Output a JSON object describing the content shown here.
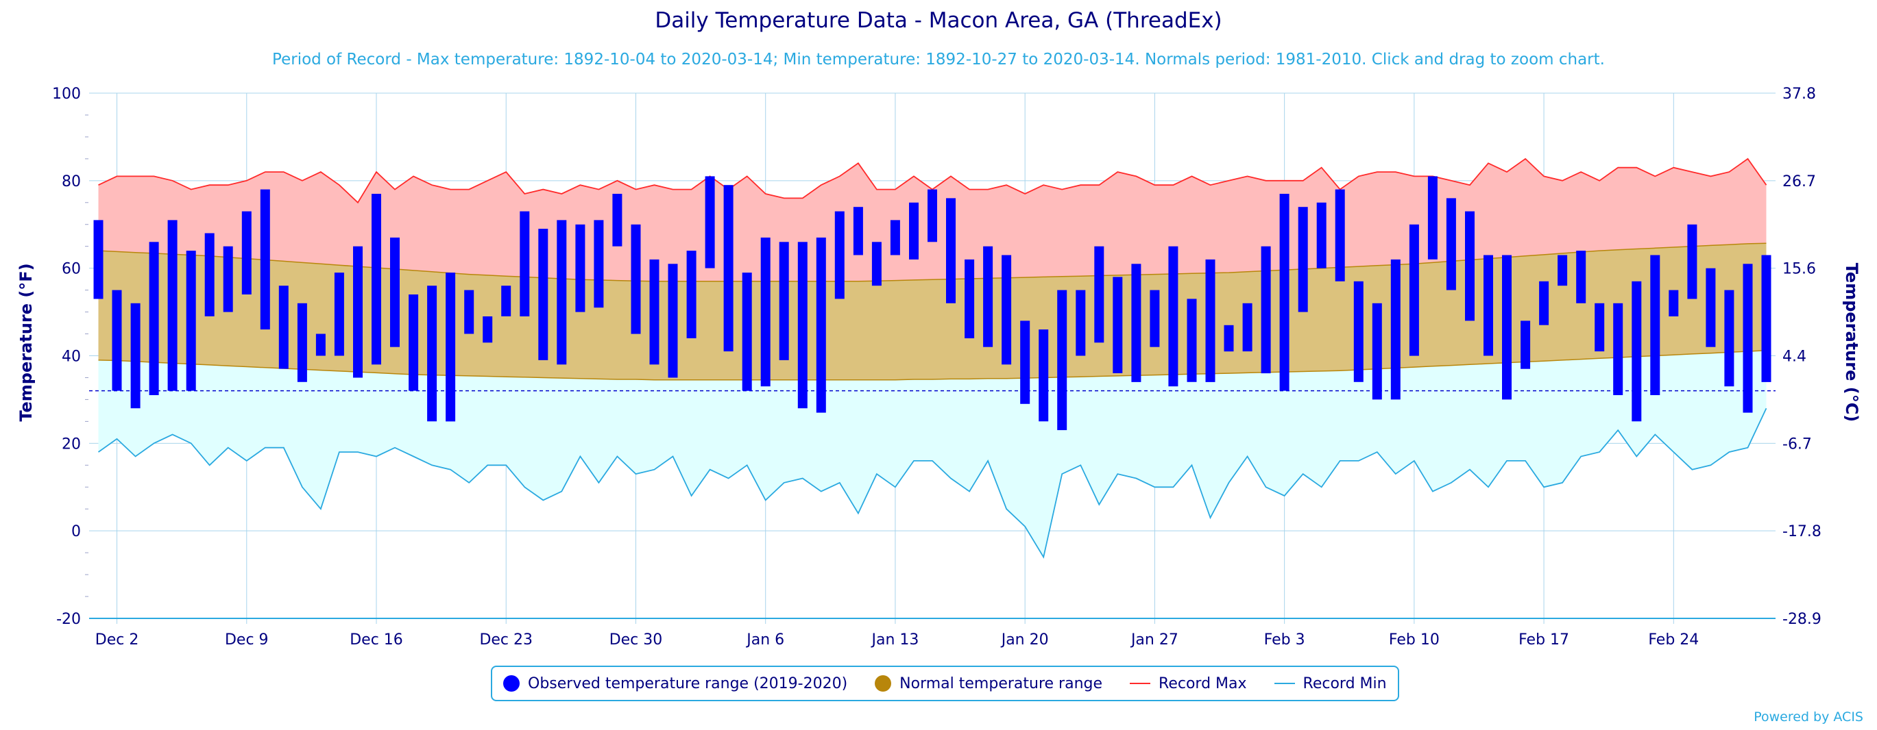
{
  "title": "Daily Temperature Data - Macon Area, GA (ThreadEx)",
  "subtitle": "Period of Record - Max temperature: 1892-10-04 to 2020-03-14; Min temperature: 1892-10-27 to 2020-03-14. Normals period: 1981-2010. Click and drag to zoom chart.",
  "credit": "Powered by ACIS",
  "legend": {
    "observed": "Observed temperature range (2019-2020)",
    "normal": "Normal temperature range",
    "record_max": "Record Max",
    "record_min": "Record Min"
  },
  "colors": {
    "observed": "#0000ff",
    "normal_fill": "#dcc27d",
    "normal_dot": "#b8860b",
    "record_max_fill": "#ffbcbc",
    "record_max_line": "#ff2a2a",
    "record_min_fill": "#e0ffff",
    "record_min_line": "#2aa9e0",
    "axis_text": "#000080",
    "freezing_line": "#0000cc"
  },
  "chart_data": {
    "type": "bar",
    "title": "Daily Temperature Data - Macon Area, GA (ThreadEx)",
    "xlabel": "",
    "ylabel": "Temperature (°F)",
    "ylabel_right": "Temperature (°C)",
    "ylim": [
      -20,
      100
    ],
    "start_date": "2019-12-01",
    "end_date": "2020-02-29",
    "x_tick_labels": [
      "Dec 2",
      "Dec 9",
      "Dec 16",
      "Dec 23",
      "Dec 30",
      "Jan 6",
      "Jan 13",
      "Jan 20",
      "Jan 27",
      "Feb 3",
      "Feb 10",
      "Feb 17",
      "Feb 24"
    ],
    "y_ticks_f": [
      -20,
      0,
      20,
      40,
      60,
      80,
      100
    ],
    "y_ticks_c": [
      "-28.9",
      "-17.8",
      "-6.7",
      "4.4",
      "15.6",
      "26.7",
      "37.8"
    ],
    "freezing_f": 32,
    "grid": true,
    "legend_position": "bottom",
    "observed_high": [
      71,
      55,
      52,
      66,
      71,
      64,
      68,
      65,
      73,
      78,
      56,
      52,
      45,
      59,
      65,
      77,
      67,
      54,
      56,
      59,
      55,
      49,
      56,
      73,
      69,
      71,
      70,
      71,
      77,
      70,
      62,
      61,
      64,
      81,
      79,
      59,
      67,
      66,
      66,
      67,
      73,
      74,
      66,
      71,
      75,
      78,
      76,
      62,
      65,
      63,
      48,
      46,
      55,
      55,
      65,
      58,
      61,
      55,
      65,
      53,
      62,
      47,
      52,
      65,
      77,
      74,
      75,
      78,
      57,
      52,
      62,
      70,
      81,
      76,
      73,
      63,
      63,
      48,
      57,
      63,
      64,
      52,
      52,
      57,
      63,
      55,
      70,
      60,
      55,
      61,
      63
    ],
    "observed_low": [
      53,
      32,
      28,
      31,
      32,
      32,
      49,
      50,
      54,
      46,
      37,
      34,
      40,
      40,
      35,
      38,
      42,
      32,
      25,
      25,
      45,
      43,
      49,
      49,
      39,
      38,
      50,
      51,
      65,
      45,
      38,
      35,
      44,
      60,
      41,
      32,
      33,
      39,
      28,
      27,
      53,
      63,
      56,
      63,
      62,
      66,
      52,
      44,
      42,
      38,
      29,
      25,
      23,
      40,
      43,
      36,
      34,
      42,
      33,
      34,
      34,
      41,
      41,
      36,
      32,
      50,
      60,
      57,
      34,
      30,
      30,
      40,
      62,
      55,
      48,
      40,
      30,
      37,
      47,
      56,
      52,
      41,
      31,
      25,
      31,
      49,
      53,
      42,
      33,
      27,
      34
    ],
    "normal_high": [
      64,
      63.8,
      63.6,
      63.4,
      63.2,
      63,
      62.8,
      62.5,
      62.2,
      61.9,
      61.6,
      61.3,
      61,
      60.7,
      60.4,
      60.1,
      59.8,
      59.5,
      59.2,
      58.9,
      58.6,
      58.4,
      58.2,
      58,
      57.8,
      57.6,
      57.4,
      57.3,
      57.2,
      57.1,
      57,
      57,
      57,
      57,
      57,
      57,
      57,
      57,
      57,
      57,
      57,
      57,
      57.1,
      57.2,
      57.3,
      57.4,
      57.5,
      57.6,
      57.7,
      57.8,
      57.9,
      58,
      58.1,
      58.2,
      58.3,
      58.4,
      58.5,
      58.6,
      58.7,
      58.8,
      58.9,
      59,
      59.2,
      59.4,
      59.6,
      59.8,
      60,
      60.2,
      60.4,
      60.6,
      60.8,
      61,
      61.3,
      61.6,
      61.9,
      62.2,
      62.5,
      62.8,
      63.1,
      63.4,
      63.7,
      64,
      64.2,
      64.4,
      64.6,
      64.8,
      65,
      65.2,
      65.4,
      65.6,
      65.7
    ],
    "normal_low": [
      39,
      38.9,
      38.7,
      38.5,
      38.3,
      38.1,
      37.9,
      37.7,
      37.5,
      37.3,
      37.1,
      36.9,
      36.7,
      36.5,
      36.3,
      36.1,
      35.9,
      35.7,
      35.6,
      35.5,
      35.4,
      35.3,
      35.2,
      35.1,
      35,
      34.9,
      34.8,
      34.7,
      34.6,
      34.6,
      34.5,
      34.5,
      34.5,
      34.5,
      34.5,
      34.5,
      34.5,
      34.5,
      34.5,
      34.5,
      34.5,
      34.5,
      34.5,
      34.5,
      34.6,
      34.6,
      34.7,
      34.7,
      34.8,
      34.8,
      34.9,
      35,
      35.1,
      35.2,
      35.3,
      35.4,
      35.5,
      35.6,
      35.7,
      35.8,
      35.9,
      36,
      36.1,
      36.2,
      36.3,
      36.4,
      36.5,
      36.6,
      36.8,
      37,
      37.2,
      37.4,
      37.6,
      37.8,
      38,
      38.2,
      38.4,
      38.6,
      38.8,
      39,
      39.2,
      39.4,
      39.6,
      39.8,
      40,
      40.2,
      40.4,
      40.6,
      40.8,
      41,
      41.2
    ],
    "record_max": [
      79,
      81,
      81,
      81,
      80,
      78,
      79,
      79,
      80,
      82,
      82,
      80,
      82,
      79,
      75,
      82,
      78,
      81,
      79,
      78,
      78,
      80,
      82,
      77,
      78,
      77,
      79,
      78,
      80,
      78,
      79,
      78,
      78,
      81,
      78,
      81,
      77,
      76,
      76,
      79,
      81,
      84,
      78,
      78,
      81,
      78,
      81,
      78,
      78,
      79,
      77,
      79,
      78,
      79,
      79,
      82,
      81,
      79,
      79,
      81,
      79,
      80,
      81,
      80,
      80,
      80,
      83,
      78,
      81,
      82,
      82,
      81,
      81,
      80,
      79,
      84,
      82,
      85,
      81,
      80,
      82,
      80,
      83,
      83,
      81,
      83,
      82,
      81,
      82,
      85,
      79
    ],
    "record_min": [
      18,
      21,
      17,
      20,
      22,
      20,
      15,
      19,
      16,
      19,
      19,
      10,
      5,
      18,
      18,
      17,
      19,
      17,
      15,
      14,
      11,
      15,
      15,
      10,
      7,
      9,
      17,
      11,
      17,
      13,
      14,
      17,
      8,
      14,
      12,
      15,
      7,
      11,
      12,
      9,
      11,
      4,
      13,
      10,
      16,
      16,
      12,
      9,
      16,
      5,
      1,
      -6,
      13,
      15,
      6,
      13,
      12,
      10,
      10,
      15,
      3,
      11,
      17,
      10,
      8,
      13,
      10,
      16,
      16,
      18,
      13,
      16,
      9,
      11,
      14,
      10,
      16,
      16,
      10,
      11,
      17,
      18,
      23,
      17,
      22,
      18,
      14,
      15,
      18,
      19,
      28
    ]
  }
}
